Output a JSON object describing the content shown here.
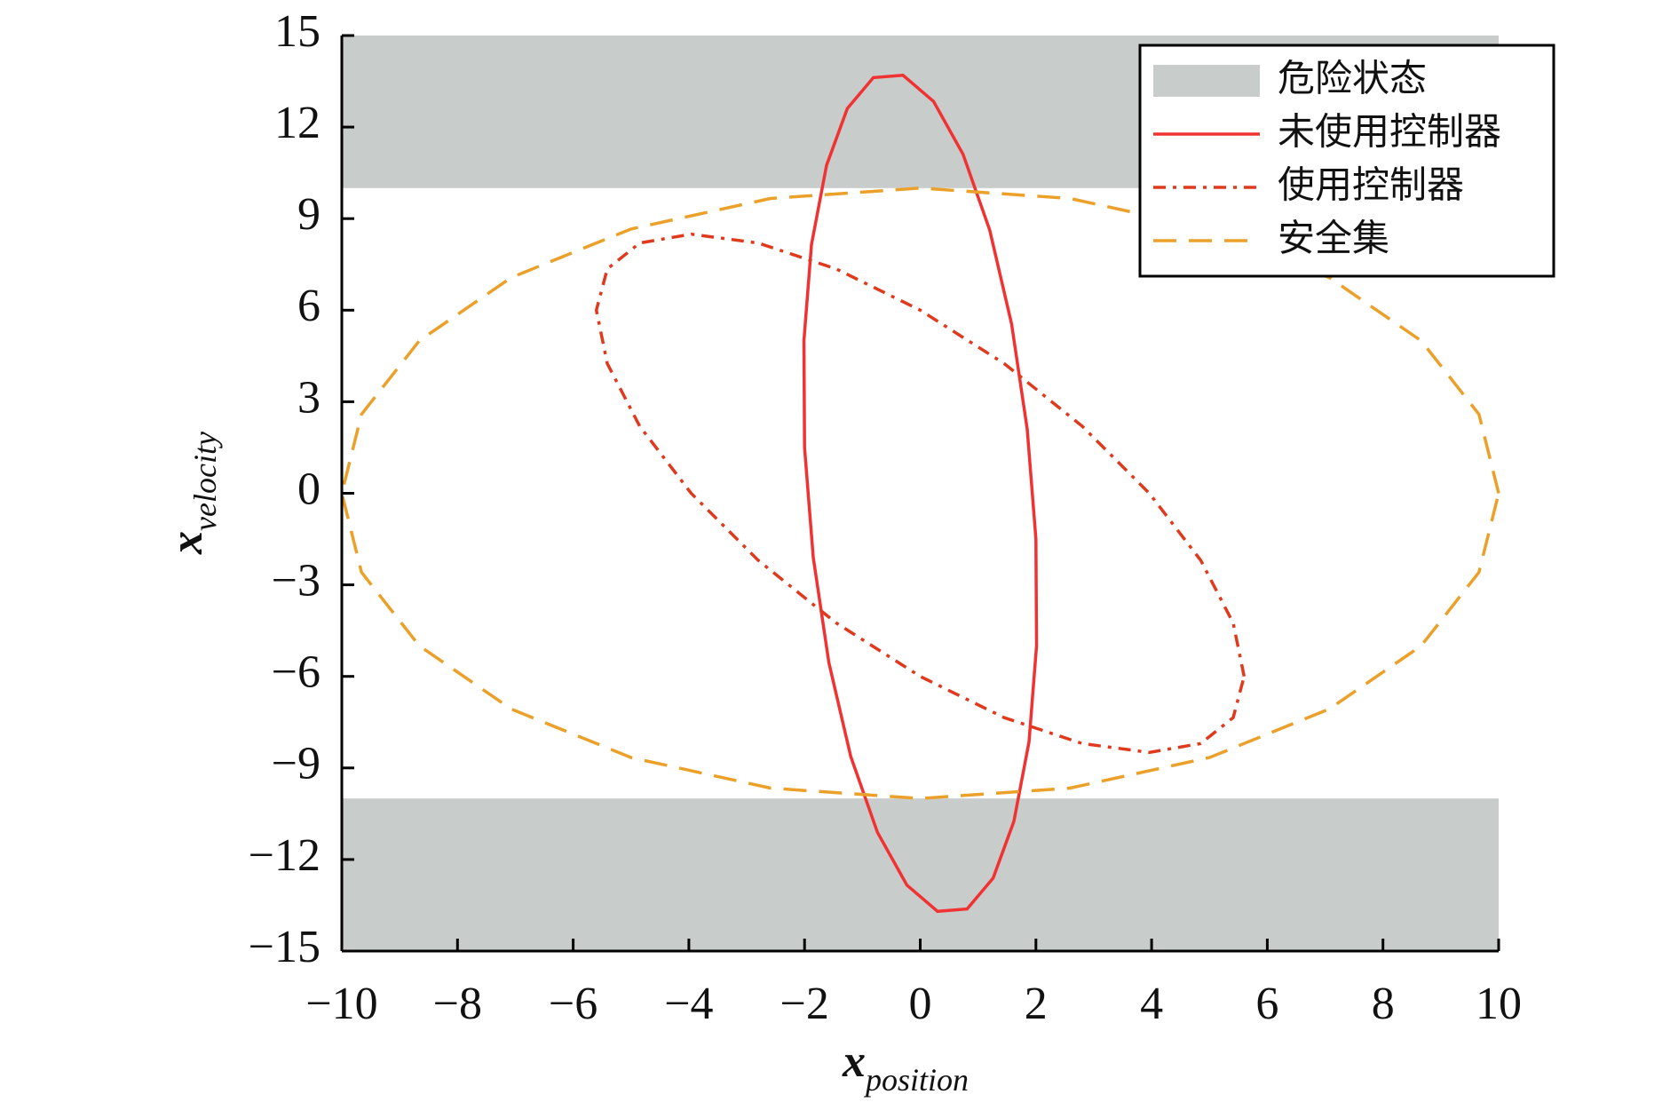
{
  "chart_data": {
    "type": "line",
    "xlabel": {
      "symbol": "x",
      "subscript": "position"
    },
    "ylabel": {
      "symbol": "x",
      "subscript": "velocity"
    },
    "xlim": [
      -10,
      10
    ],
    "ylim": [
      -15,
      15
    ],
    "xticks": [
      {
        "value": -10,
        "label": "−10"
      },
      {
        "value": -8,
        "label": "−8"
      },
      {
        "value": -6,
        "label": "−6"
      },
      {
        "value": -4,
        "label": "−4"
      },
      {
        "value": -2,
        "label": "−2"
      },
      0,
      2,
      4,
      6,
      8,
      10
    ],
    "yticks": [
      {
        "value": -15,
        "label": "−15"
      },
      {
        "value": -12,
        "label": "−12"
      },
      {
        "value": -9,
        "label": "−9"
      },
      {
        "value": -6,
        "label": "−6"
      },
      {
        "value": -3,
        "label": "−3"
      },
      0,
      3,
      6,
      9,
      12,
      15
    ],
    "regions": {
      "name": "危险状态",
      "color": "#c8cccb",
      "bands": [
        [
          10,
          15
        ],
        [
          -15,
          -10
        ]
      ]
    },
    "series": [
      {
        "name": "未使用控制器",
        "color": "#f03232",
        "dash": "solid",
        "x": [
          2,
          1.85,
          1.58,
          1.2,
          0.74,
          0.23,
          -0.3,
          -0.81,
          -1.26,
          -1.62,
          -1.88,
          -2.01,
          -2,
          -1.85,
          -1.58,
          -1.2,
          -0.74,
          -0.23,
          0.3,
          0.81,
          1.26,
          1.62,
          1.88,
          2.01,
          2
        ],
        "values": [
          -1.5,
          2.1,
          5.55,
          8.63,
          11.11,
          12.84,
          13.7,
          13.62,
          12.61,
          10.75,
          8.15,
          5,
          1.5,
          -2.1,
          -5.55,
          -8.63,
          -11.11,
          -12.84,
          -13.7,
          -13.62,
          -12.61,
          -10.75,
          -8.15,
          -5,
          -1.5
        ]
      },
      {
        "name": "使用控制器",
        "color": "#e03a1e",
        "dash": "dashdot",
        "x": [
          5.6,
          5.41,
          4.85,
          3.96,
          2.8,
          1.45,
          0,
          -1.45,
          -2.8,
          -3.96,
          -4.85,
          -5.41,
          -5.6,
          -5.41,
          -4.85,
          -3.96,
          -2.8,
          -1.45,
          0,
          1.45,
          2.8,
          3.96,
          4.85,
          5.41,
          5.6
        ],
        "values": [
          -6,
          -4.25,
          -2.2,
          0,
          2.2,
          4.25,
          6,
          7.35,
          8.2,
          8.49,
          8.2,
          7.35,
          6,
          4.25,
          2.2,
          0,
          -2.2,
          -4.25,
          -6,
          -7.35,
          -8.2,
          -8.49,
          -8.2,
          -7.35,
          -6
        ]
      },
      {
        "name": "安全集",
        "color": "#eba02a",
        "dash": "dashed",
        "x": [
          10,
          9.66,
          8.66,
          7.07,
          5,
          2.59,
          0,
          -2.59,
          -5,
          -7.07,
          -8.66,
          -9.66,
          -10,
          -9.66,
          -8.66,
          -7.07,
          -5,
          -2.59,
          0,
          2.59,
          5,
          7.07,
          8.66,
          9.66,
          10
        ],
        "values": [
          0,
          2.59,
          5,
          7.07,
          8.66,
          9.66,
          10,
          9.66,
          8.66,
          7.07,
          5,
          2.59,
          0,
          -2.59,
          -5,
          -7.07,
          -8.66,
          -9.66,
          -10,
          -9.66,
          -8.66,
          -7.07,
          -5,
          -2.59,
          0
        ]
      }
    ],
    "legend": "upper right"
  }
}
